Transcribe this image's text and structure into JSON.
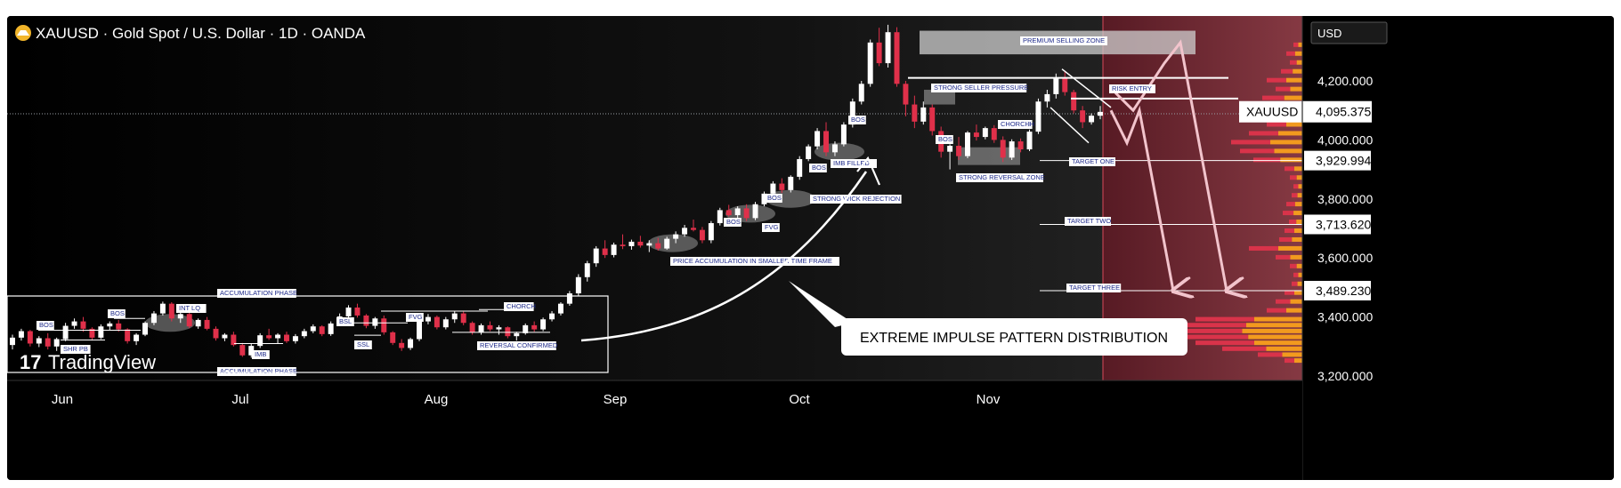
{
  "header": {
    "title": "XAUUSD · Gold Spot / U.S. Dollar · 1D · OANDA",
    "currency": "USD",
    "brand": "TradingView"
  },
  "colors": {
    "background": "#000000",
    "bull": "#ffffff",
    "bear": "#e0304a",
    "accent_zone": "#7a2430",
    "volume_profile_main": "#f29a1e",
    "volume_profile_alt": "#d9334a"
  },
  "chart_data": {
    "type": "candlestick",
    "symbol": "XAUUSD",
    "timeframe": "1D",
    "ylim": [
      3150,
      4420
    ],
    "x_ticks": [
      "Jun",
      "Jul",
      "Aug",
      "Sep",
      "Oct",
      "Nov"
    ],
    "y_ticks": [
      "4,200.000",
      "4,000.000",
      "3,800.000",
      "3,600.000",
      "3,400.000",
      "3,200.000"
    ],
    "y_tick_values": [
      4200,
      4000,
      3800,
      3600,
      3400,
      3200
    ],
    "current_price": {
      "label": "XAUUSD",
      "value": 4095.375,
      "display": "4,095.375"
    },
    "price_levels": [
      {
        "value": 3929.994,
        "display": "3,929.994",
        "label": "TARGET ONE"
      },
      {
        "value": 3713.62,
        "display": "3,713.620",
        "label": "TARGET TWO"
      },
      {
        "value": 3489.23,
        "display": "3,489.230",
        "label": "TARGET THREE"
      }
    ],
    "candles": [
      [
        3305,
        3340,
        3290,
        3330
      ],
      [
        3330,
        3360,
        3320,
        3352
      ],
      [
        3352,
        3356,
        3300,
        3310
      ],
      [
        3310,
        3335,
        3298,
        3328
      ],
      [
        3328,
        3345,
        3290,
        3300
      ],
      [
        3300,
        3330,
        3285,
        3325
      ],
      [
        3325,
        3380,
        3318,
        3370
      ],
      [
        3370,
        3395,
        3360,
        3385
      ],
      [
        3385,
        3400,
        3350,
        3360
      ],
      [
        3360,
        3365,
        3320,
        3330
      ],
      [
        3330,
        3375,
        3325,
        3368
      ],
      [
        3368,
        3385,
        3355,
        3378
      ],
      [
        3378,
        3390,
        3350,
        3358
      ],
      [
        3358,
        3362,
        3310,
        3318
      ],
      [
        3318,
        3345,
        3305,
        3340
      ],
      [
        3340,
        3385,
        3335,
        3380
      ],
      [
        3380,
        3420,
        3372,
        3412
      ],
      [
        3412,
        3452,
        3405,
        3445
      ],
      [
        3445,
        3450,
        3385,
        3395
      ],
      [
        3395,
        3420,
        3380,
        3410
      ],
      [
        3410,
        3420,
        3362,
        3368
      ],
      [
        3368,
        3395,
        3360,
        3390
      ],
      [
        3390,
        3400,
        3355,
        3360
      ],
      [
        3360,
        3368,
        3320,
        3328
      ],
      [
        3328,
        3345,
        3318,
        3340
      ],
      [
        3340,
        3350,
        3300,
        3305
      ],
      [
        3305,
        3312,
        3265,
        3270
      ],
      [
        3270,
        3310,
        3262,
        3302
      ],
      [
        3302,
        3345,
        3295,
        3338
      ],
      [
        3338,
        3360,
        3322,
        3328
      ],
      [
        3328,
        3345,
        3310,
        3340
      ],
      [
        3340,
        3350,
        3312,
        3318
      ],
      [
        3318,
        3342,
        3310,
        3335
      ],
      [
        3335,
        3360,
        3328,
        3352
      ],
      [
        3352,
        3375,
        3345,
        3368
      ],
      [
        3368,
        3372,
        3335,
        3342
      ],
      [
        3342,
        3385,
        3336,
        3378
      ],
      [
        3378,
        3412,
        3370,
        3402
      ],
      [
        3402,
        3440,
        3396,
        3432
      ],
      [
        3432,
        3445,
        3398,
        3405
      ],
      [
        3405,
        3410,
        3362,
        3370
      ],
      [
        3370,
        3400,
        3360,
        3395
      ],
      [
        3395,
        3405,
        3340,
        3348
      ],
      [
        3348,
        3352,
        3305,
        3312
      ],
      [
        3312,
        3325,
        3285,
        3295
      ],
      [
        3295,
        3330,
        3288,
        3325
      ],
      [
        3325,
        3392,
        3318,
        3385
      ],
      [
        3385,
        3410,
        3375,
        3400
      ],
      [
        3400,
        3405,
        3358,
        3365
      ],
      [
        3365,
        3400,
        3358,
        3392
      ],
      [
        3392,
        3420,
        3380,
        3412
      ],
      [
        3412,
        3418,
        3372,
        3380
      ],
      [
        3380,
        3385,
        3340,
        3348
      ],
      [
        3348,
        3378,
        3340,
        3372
      ],
      [
        3372,
        3385,
        3352,
        3358
      ],
      [
        3358,
        3372,
        3340,
        3365
      ],
      [
        3365,
        3368,
        3328,
        3335
      ],
      [
        3335,
        3350,
        3320,
        3345
      ],
      [
        3345,
        3378,
        3340,
        3372
      ],
      [
        3372,
        3385,
        3350,
        3358
      ],
      [
        3358,
        3398,
        3352,
        3392
      ],
      [
        3392,
        3420,
        3385,
        3412
      ],
      [
        3412,
        3450,
        3405,
        3445
      ],
      [
        3445,
        3488,
        3438,
        3480
      ],
      [
        3480,
        3545,
        3470,
        3535
      ],
      [
        3535,
        3590,
        3520,
        3582
      ],
      [
        3582,
        3640,
        3570,
        3632
      ],
      [
        3632,
        3660,
        3600,
        3610
      ],
      [
        3610,
        3652,
        3602,
        3645
      ],
      [
        3645,
        3680,
        3630,
        3640
      ],
      [
        3640,
        3662,
        3628,
        3655
      ],
      [
        3655,
        3675,
        3635,
        3642
      ],
      [
        3642,
        3660,
        3620,
        3650
      ],
      [
        3650,
        3668,
        3625,
        3632
      ],
      [
        3632,
        3672,
        3628,
        3665
      ],
      [
        3665,
        3690,
        3650,
        3680
      ],
      [
        3680,
        3712,
        3672,
        3702
      ],
      [
        3702,
        3730,
        3690,
        3695
      ],
      [
        3695,
        3705,
        3650,
        3660
      ],
      [
        3660,
        3725,
        3650,
        3718
      ],
      [
        3718,
        3770,
        3710,
        3762
      ],
      [
        3762,
        3780,
        3740,
        3745
      ],
      [
        3745,
        3775,
        3730,
        3768
      ],
      [
        3768,
        3782,
        3725,
        3735
      ],
      [
        3735,
        3790,
        3728,
        3782
      ],
      [
        3782,
        3825,
        3775,
        3818
      ],
      [
        3818,
        3860,
        3810,
        3852
      ],
      [
        3852,
        3870,
        3820,
        3830
      ],
      [
        3830,
        3880,
        3822,
        3875
      ],
      [
        3875,
        3945,
        3865,
        3935
      ],
      [
        3935,
        3985,
        3928,
        3978
      ],
      [
        3978,
        4040,
        3968,
        4030
      ],
      [
        4030,
        4060,
        3945,
        3958
      ],
      [
        3958,
        3995,
        3945,
        3985
      ],
      [
        3985,
        4060,
        3978,
        4052
      ],
      [
        4052,
        4140,
        4042,
        4130
      ],
      [
        4130,
        4200,
        4120,
        4190
      ],
      [
        4190,
        4340,
        4180,
        4330
      ],
      [
        4330,
        4380,
        4250,
        4260
      ],
      [
        4260,
        4390,
        4245,
        4365
      ],
      [
        4365,
        4382,
        4180,
        4190
      ],
      [
        4190,
        4200,
        4080,
        4120
      ],
      [
        4120,
        4150,
        4040,
        4062
      ],
      [
        4062,
        4130,
        4052,
        4110
      ],
      [
        4110,
        4120,
        4015,
        4030
      ],
      [
        4030,
        4045,
        3940,
        3960
      ],
      [
        3960,
        3985,
        3900,
        3980
      ],
      [
        3980,
        4010,
        3932,
        3945
      ],
      [
        3945,
        4030,
        3938,
        4025
      ],
      [
        4025,
        4052,
        3998,
        4010
      ],
      [
        4010,
        4045,
        4002,
        4040
      ],
      [
        4040,
        4050,
        3990,
        4000
      ],
      [
        4000,
        4012,
        3925,
        3940
      ],
      [
        3940,
        4002,
        3932,
        3995
      ],
      [
        3995,
        4005,
        3958,
        3968
      ],
      [
        3968,
        4035,
        3962,
        4028
      ],
      [
        4028,
        4140,
        4020,
        4130
      ],
      [
        4130,
        4170,
        4110,
        4155
      ],
      [
        4155,
        4225,
        4140,
        4212
      ],
      [
        4212,
        4230,
        4150,
        4162
      ],
      [
        4162,
        4170,
        4090,
        4100
      ],
      [
        4100,
        4115,
        4040,
        4060
      ],
      [
        4060,
        4090,
        4052,
        4082
      ],
      [
        4082,
        4115,
        4070,
        4095
      ]
    ],
    "annotations": [
      "ACCUMULATION PHASE",
      "ACCUMULATION PHASE",
      "BOS",
      "BOS",
      "INT LQ",
      "SHR PB",
      "IMB",
      "BSL",
      "SSL",
      "FVG",
      "CHORCH",
      "REVERSAL CONFIRMED",
      "PRICE ACCUMULATION IN SMALLER TIME FRAME",
      "BOS",
      "BOS",
      "FVG",
      "BOS",
      "STRONG WICK REJECTION",
      "BOS",
      "IMB FILLED",
      "CHORCH",
      "STRONG SELLER PRESSURE",
      "BOS",
      "CHORCH",
      "STRONG REVERSAL ZONE",
      "PREMIUM SELLING ZONE",
      "RISK ENTRY",
      "TARGET ONE",
      "TARGET TWO",
      "TARGET THREE"
    ],
    "callout": "EXTREME IMPULSE PATTERN DISTRIBUTION"
  }
}
